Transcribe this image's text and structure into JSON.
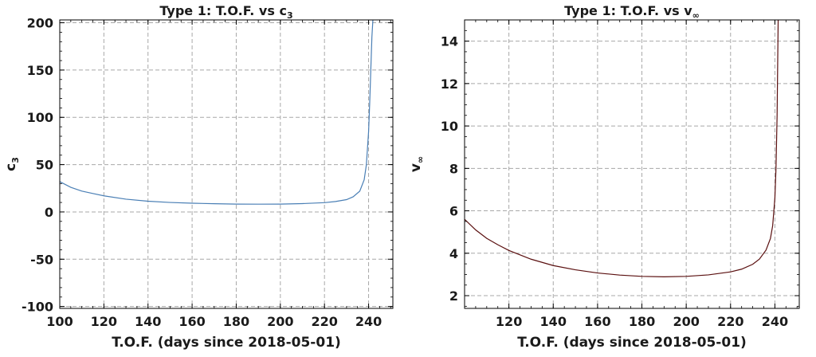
{
  "chart_data": [
    {
      "type": "line",
      "title": "Type 1: T.O.F. vs c",
      "title_sub": "3",
      "xlabel": "T.O.F. (days since 2018-05-01)",
      "ylabel": "c",
      "ylabel_sub": "3",
      "xlim": [
        100,
        251
      ],
      "ylim": [
        -102,
        203
      ],
      "xticks": [
        100,
        120,
        140,
        160,
        180,
        200,
        220,
        240
      ],
      "yticks": [
        -100,
        -50,
        0,
        50,
        100,
        150,
        200
      ],
      "x_minor_step": 5,
      "y_minor_step": 10,
      "grid": true,
      "color": "#4a7fb5",
      "series": [
        {
          "x": [
            100,
            105,
            110,
            115,
            120,
            130,
            140,
            150,
            160,
            170,
            180,
            190,
            200,
            210,
            220,
            225,
            230,
            233,
            236,
            238,
            239,
            240,
            240.5,
            241,
            241.5,
            242
          ],
          "y": [
            32,
            26,
            22,
            19.5,
            17,
            13.5,
            11.3,
            10,
            9.2,
            8.7,
            8.3,
            8.2,
            8.3,
            8.8,
            9.8,
            11,
            13,
            16,
            22,
            34,
            50,
            85,
            115,
            150,
            185,
            205
          ]
        }
      ]
    },
    {
      "type": "line",
      "title": "Type 1: T.O.F. vs v",
      "title_sub": "∞",
      "xlabel": "T.O.F. (days since 2018-05-01)",
      "ylabel": "v",
      "ylabel_sub": "∞",
      "xlim": [
        100,
        251
      ],
      "ylim": [
        1.4,
        15
      ],
      "xticks": [
        120,
        140,
        160,
        180,
        200,
        220,
        240
      ],
      "yticks": [
        2,
        4,
        6,
        8,
        10,
        12,
        14
      ],
      "x_minor_step": 5,
      "y_minor_step": 0.5,
      "grid": true,
      "color": "#5a0f0f",
      "series": [
        {
          "x": [
            100,
            105,
            110,
            115,
            120,
            130,
            140,
            150,
            160,
            170,
            180,
            190,
            200,
            210,
            220,
            225,
            230,
            233,
            236,
            238,
            239,
            240,
            240.5,
            241,
            241.5
          ],
          "y": [
            5.6,
            5.1,
            4.7,
            4.4,
            4.13,
            3.72,
            3.42,
            3.22,
            3.07,
            2.97,
            2.91,
            2.89,
            2.91,
            2.98,
            3.12,
            3.25,
            3.48,
            3.72,
            4.15,
            4.7,
            5.3,
            6.6,
            8.0,
            10.5,
            15.2
          ]
        }
      ]
    }
  ]
}
